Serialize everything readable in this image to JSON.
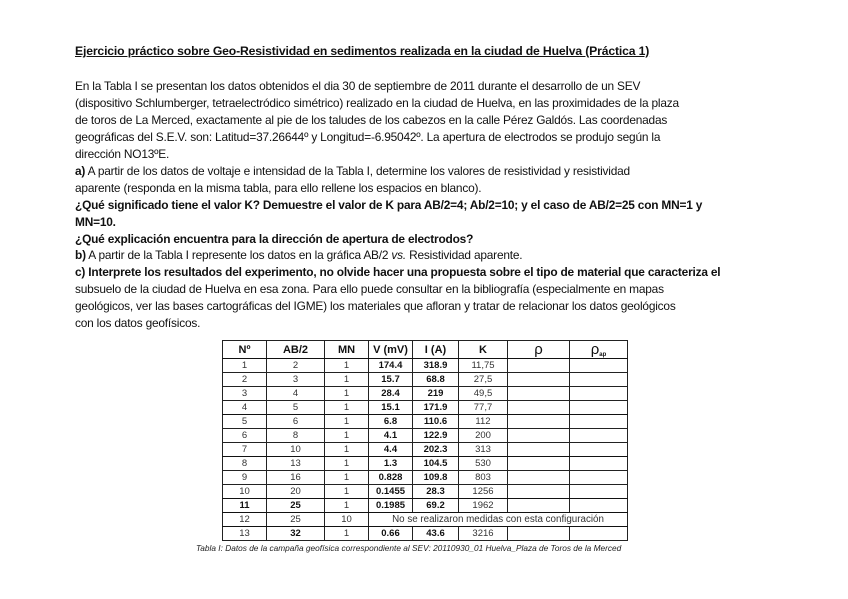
{
  "title": "Ejercicio práctico sobre Geo-Resistividad en sedimentos realizada en la ciudad de Huelva (Práctica 1)",
  "lines": [
    [
      {
        "t": "En la Tabla I se presentan los datos obtenidos el dia 30 de septiembre de 2011 durante el desarrollo de un SEV"
      }
    ],
    [
      {
        "t": "(dispositivo Schlumberger, tetraelectródico simétrico) realizado en la ciudad de Huelva, en las proximidades de la plaza"
      }
    ],
    [
      {
        "t": "de toros de La Merced, exactamente al pie de los taludes de los cabezos en la calle Pérez Galdós. Las coordenadas"
      }
    ],
    [
      {
        "t": "geográficas del S.E.V. son: Latitud=37.26644º y Longitud=-6.95042º. La apertura de electrodos se produjo según la"
      }
    ],
    [
      {
        "t": "dirección NO13ºE."
      }
    ],
    [
      {
        "t": " a)",
        "s": "b"
      },
      {
        "t": " A partir de los datos de voltaje e intensidad de la Tabla I, determine los valores de resistividad y resistividad"
      }
    ],
    [
      {
        "t": "aparente (responda en la misma tabla, para ello rellene los espacios en blanco)."
      }
    ],
    [
      {
        "t": "¿Qué significado tiene el valor K? Demuestre el valor de K para AB/2=4; Ab/2=10;  y el caso de AB/2=25 con MN=1 y",
        "s": "b"
      }
    ],
    [
      {
        "t": "MN=10.",
        "s": "b"
      }
    ],
    [
      {
        "t": "¿Qué explicación encuentra para la dirección de apertura de electrodos?",
        "s": "b"
      }
    ],
    [
      {
        "t": "b)",
        "s": "b"
      },
      {
        "t": " A partir de la Tabla I represente los datos en la gráfica AB/2 "
      },
      {
        "t": "vs.",
        "s": "i"
      },
      {
        "t": " Resistividad aparente."
      }
    ],
    [
      {
        "t": "c) Interprete los resultados del experimento, no olvide hacer una propuesta sobre el tipo de material que caracteriza el",
        "s": "b"
      }
    ],
    [
      {
        "t": "subsuelo de la ciudad de Huelva en esa zona. Para ello puede consultar en la bibliografía (especialmente en mapas"
      }
    ],
    [
      {
        "t": "geológicos, ver las bases cartográficas del IGME) los materiales que afloran y tratar de relacionar los datos geológicos"
      }
    ],
    [
      {
        "t": "con los datos geofísicos."
      }
    ]
  ],
  "table": {
    "headers": [
      "Nº",
      "AB/2",
      "MN",
      "V (mV)",
      "I (A)",
      "K",
      "ρ",
      "ρ"
    ],
    "rho_ap_subscript": "ap",
    "rows": [
      [
        "1",
        "2",
        "1",
        "174.4",
        "318.9",
        "11,75",
        "",
        ""
      ],
      [
        "2",
        "3",
        "1",
        "15.7",
        "68.8",
        "27,5",
        "",
        ""
      ],
      [
        "3",
        "4",
        "1",
        "28.4",
        "219",
        "49,5",
        "",
        ""
      ],
      [
        "4",
        "5",
        "1",
        "15.1",
        "171.9",
        "77,7",
        "",
        ""
      ],
      [
        "5",
        "6",
        "1",
        "6.8",
        "110.6",
        "112",
        "",
        ""
      ],
      [
        "6",
        "8",
        "1",
        "4.1",
        "122.9",
        "200",
        "",
        ""
      ],
      [
        "7",
        "10",
        "1",
        "4.4",
        "202.3",
        "313",
        "",
        ""
      ],
      [
        "8",
        "13",
        "1",
        "1.3",
        "104.5",
        "530",
        "",
        ""
      ],
      [
        "9",
        "16",
        "1",
        "0.828",
        "109.8",
        "803",
        "",
        ""
      ],
      [
        "10",
        "20",
        "1",
        "0.1455",
        "28.3",
        "1256",
        "",
        ""
      ],
      [
        "11",
        "25",
        "1",
        "0.1985",
        "69.2",
        "1962",
        "",
        ""
      ],
      [
        "12",
        "25",
        "10",
        "No se realizaron medidas con esta configuración"
      ],
      [
        "13",
        "32",
        "1",
        "0.66",
        "43.6",
        "3216",
        "",
        ""
      ]
    ],
    "caption": "Tabla I: Datos de la campaña geofísica correspondiente al SEV: 20110930_01  Huelva_Plaza de Toros de la Merced"
  }
}
